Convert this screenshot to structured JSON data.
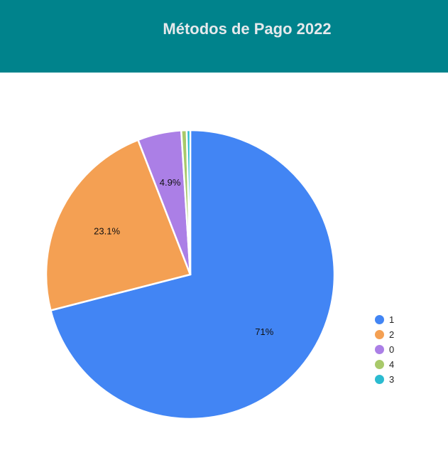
{
  "header": {
    "title": "Métodos de Pago 2022"
  },
  "colors": {
    "header_bg": "#00838c"
  },
  "chart_data": {
    "type": "pie",
    "title": "Métodos de Pago 2022",
    "slices": [
      {
        "label": "1",
        "value": 71.0,
        "display": "71%",
        "color": "#4285f4"
      },
      {
        "label": "2",
        "value": 23.1,
        "display": "23.1%",
        "color": "#f4a053"
      },
      {
        "label": "0",
        "value": 4.9,
        "display": "4.9%",
        "color": "#ab7fe6"
      },
      {
        "label": "4",
        "value": 0.6,
        "display": "",
        "color": "#a8c96a"
      },
      {
        "label": "3",
        "value": 0.4,
        "display": "",
        "color": "#2bbbd0"
      }
    ],
    "legend_position": "right"
  }
}
